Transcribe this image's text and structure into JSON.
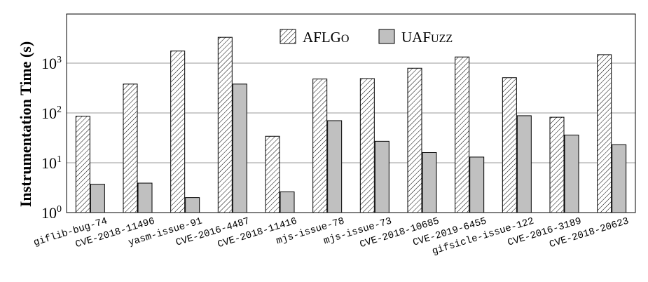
{
  "chart_data": {
    "type": "bar",
    "ylabel": "Instrumentation Time (s)",
    "yscale": "log",
    "ylim": [
      1,
      10000
    ],
    "ytick_labels": [
      {
        "base": "10",
        "exp": "0"
      },
      {
        "base": "10",
        "exp": "1"
      },
      {
        "base": "10",
        "exp": "2"
      },
      {
        "base": "10",
        "exp": "3"
      }
    ],
    "grid": true,
    "legend_position": "top-center",
    "categories": [
      "giflib-bug-74",
      "CVE-2018-11496",
      "yasm-issue-91",
      "CVE-2016-4487",
      "CVE-2018-11416",
      "mjs-issue-78",
      "mjs-issue-73",
      "CVE-2018-10685",
      "CVE-2019-6455",
      "gifsicle-issue-122",
      "CVE-2016-3189",
      "CVE-2018-20623"
    ],
    "series": [
      {
        "name": "AFLGo",
        "legend_parts": [
          "AFLG",
          "O"
        ],
        "pattern": "hatched",
        "color": "#ffffff",
        "values": [
          86,
          380,
          1750,
          3300,
          34,
          480,
          490,
          790,
          1330,
          510,
          82,
          1480
        ]
      },
      {
        "name": "UAFuzz",
        "legend_parts": [
          "UAF",
          "UZZ"
        ],
        "pattern": "solid",
        "color": "#c0c0c0",
        "values": [
          3.7,
          3.9,
          2.0,
          380,
          2.6,
          70,
          27,
          16,
          13,
          88,
          36,
          23
        ]
      }
    ]
  }
}
